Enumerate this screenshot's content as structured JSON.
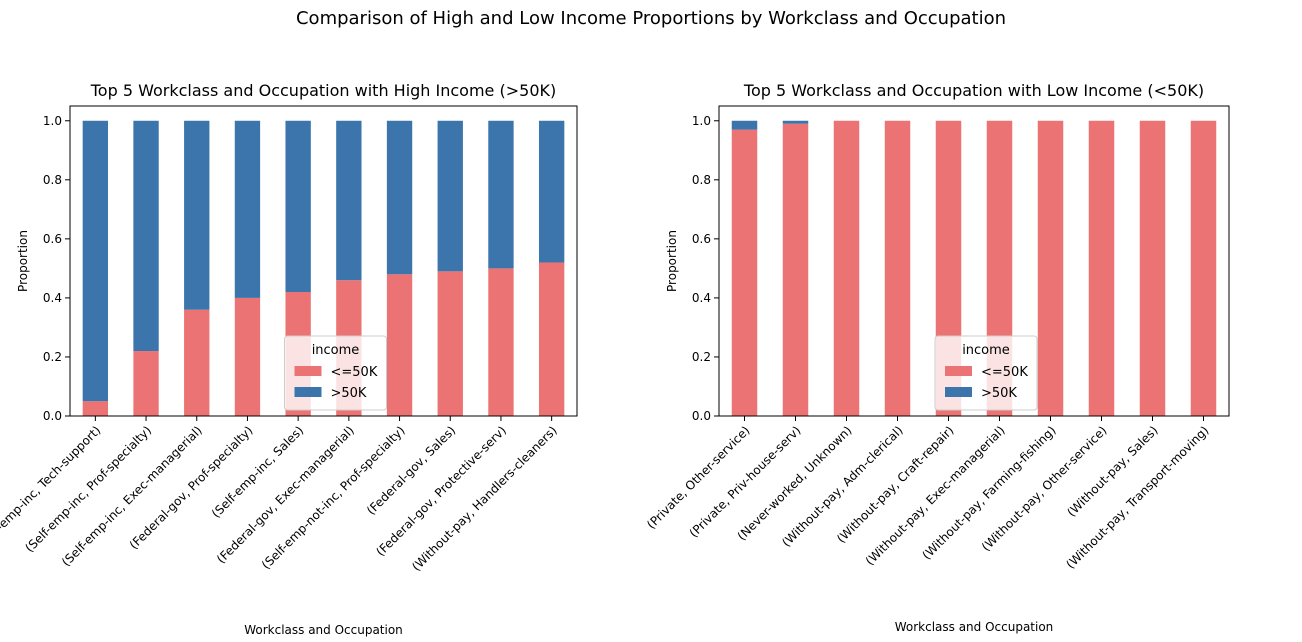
{
  "suptitle": "Comparison of High and Low Income Proportions by Workclass and Occupation",
  "colors": {
    "low": "#ec7373",
    "high": "#3b75ab"
  },
  "chart_data": [
    {
      "type": "bar",
      "stacked": true,
      "title": "Top 5 Workclass and Occupation with High Income (>50K)",
      "xlabel": "Workclass and Occupation",
      "ylabel": "Proportion",
      "ylim": [
        0,
        1.05
      ],
      "yticks": [
        "0.0",
        "0.2",
        "0.4",
        "0.6",
        "0.8",
        "1.0"
      ],
      "legend": {
        "title": "income",
        "placement": "lower-center",
        "entries": [
          "<=50K",
          ">50K"
        ]
      },
      "categories": [
        "(Self-emp-inc, Tech-support)",
        "(Self-emp-inc, Prof-specialty)",
        "(Self-emp-inc, Exec-managerial)",
        "(Federal-gov, Prof-specialty)",
        "(Self-emp-inc, Sales)",
        "(Federal-gov, Exec-managerial)",
        "(Self-emp-not-inc, Prof-specialty)",
        "(Federal-gov, Sales)",
        "(Federal-gov, Protective-serv)",
        "(Without-pay, Handlers-cleaners)"
      ],
      "series": [
        {
          "name": "<=50K",
          "values": [
            0.05,
            0.22,
            0.36,
            0.4,
            0.42,
            0.46,
            0.48,
            0.49,
            0.5,
            0.52
          ]
        },
        {
          "name": ">50K",
          "values": [
            0.95,
            0.78,
            0.64,
            0.6,
            0.58,
            0.54,
            0.52,
            0.51,
            0.5,
            0.48
          ]
        }
      ]
    },
    {
      "type": "bar",
      "stacked": true,
      "title": "Top 5 Workclass and Occupation with Low Income (<50K)",
      "xlabel": "Workclass and Occupation",
      "ylabel": "Proportion",
      "ylim": [
        0,
        1.05
      ],
      "yticks": [
        "0.0",
        "0.2",
        "0.4",
        "0.6",
        "0.8",
        "1.0"
      ],
      "legend": {
        "title": "income",
        "placement": "lower-center",
        "entries": [
          "<=50K",
          ">50K"
        ]
      },
      "categories": [
        "(Private, Other-service)",
        "(Private, Priv-house-serv)",
        "(Never-worked, Unknown)",
        "(Without-pay, Adm-clerical)",
        "(Without-pay, Craft-repair)",
        "(Without-pay, Exec-managerial)",
        "(Without-pay, Farming-fishing)",
        "(Without-pay, Other-service)",
        "(Without-pay, Sales)",
        "(Without-pay, Transport-moving)"
      ],
      "series": [
        {
          "name": "<=50K",
          "values": [
            0.97,
            0.99,
            1.0,
            1.0,
            1.0,
            1.0,
            1.0,
            1.0,
            1.0,
            1.0
          ]
        },
        {
          "name": ">50K",
          "values": [
            0.03,
            0.01,
            0.0,
            0.0,
            0.0,
            0.0,
            0.0,
            0.0,
            0.0,
            0.0
          ]
        }
      ]
    }
  ]
}
